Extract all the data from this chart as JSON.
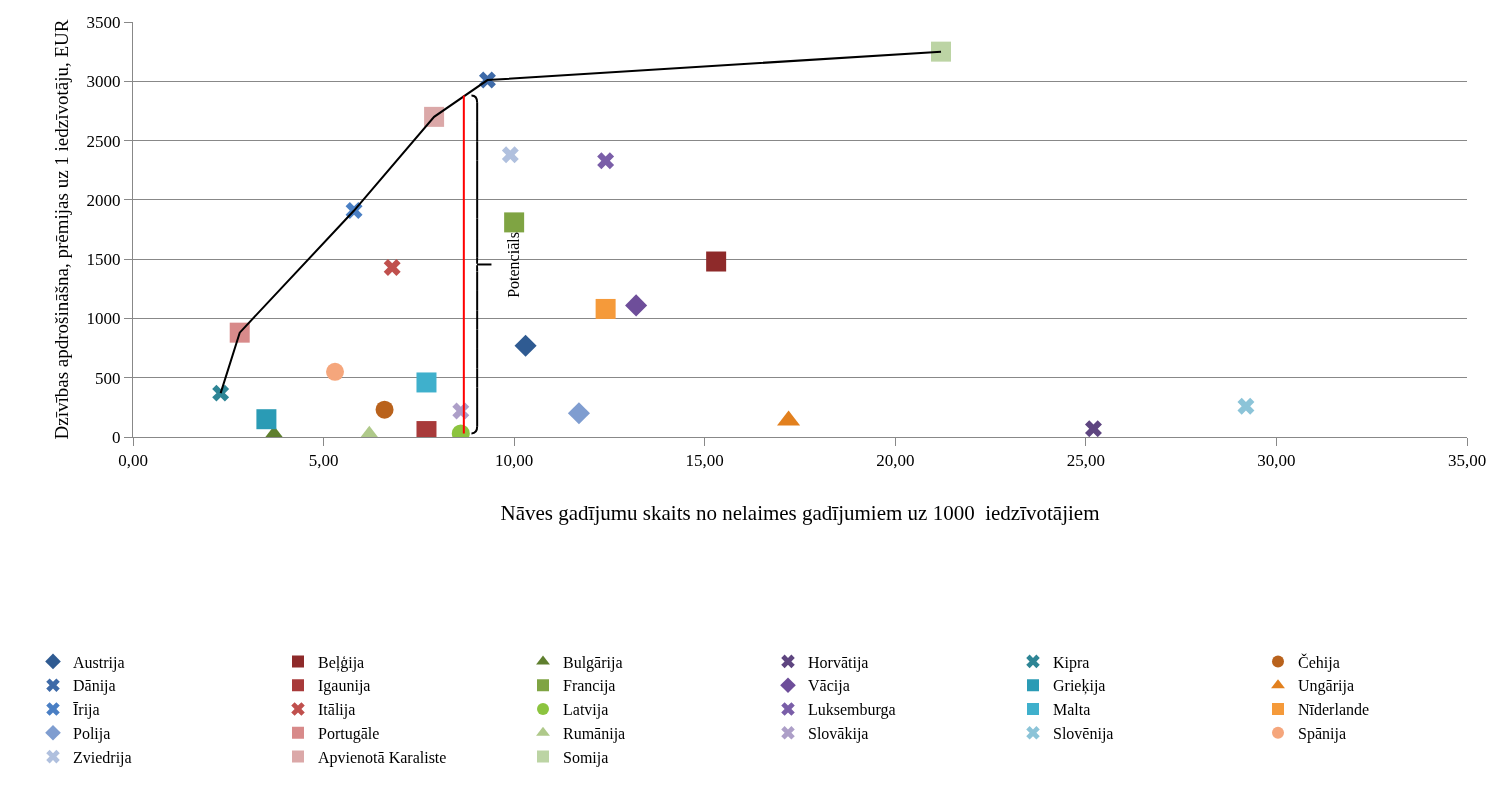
{
  "chart_data": {
    "type": "scatter",
    "xlabel": "Nāves gadījumu skaits no nelaimes gadījumiem uz 1000  iedzīvotājiem",
    "ylabel": "Dzīvības apdrošināšna, prēmijas uz 1 iedzīvotāju, EUR",
    "xlim": [
      0,
      35
    ],
    "ylim": [
      0,
      3500
    ],
    "xticks": [
      {
        "value": 0,
        "label": "0,00"
      },
      {
        "value": 5,
        "label": "5,00"
      },
      {
        "value": 10,
        "label": "10,00"
      },
      {
        "value": 15,
        "label": "15,00"
      },
      {
        "value": 20,
        "label": "20,00"
      },
      {
        "value": 25,
        "label": "25,00"
      },
      {
        "value": 30,
        "label": "30,00"
      },
      {
        "value": 35,
        "label": "35,00"
      }
    ],
    "yticks": [
      0,
      500,
      1000,
      1500,
      2000,
      2500,
      3000,
      3500
    ],
    "grid": "y",
    "legend": "bottom",
    "annotations": [
      "Potenciāls"
    ],
    "series": [
      {
        "name": "Austrija",
        "color": "#2f5b92",
        "marker": "diamond",
        "x": [
          10.3
        ],
        "values": [
          770
        ]
      },
      {
        "name": "Beļģija",
        "color": "#8e2a2a",
        "marker": "square",
        "x": [
          15.3
        ],
        "values": [
          1480
        ]
      },
      {
        "name": "Bulgārija",
        "color": "#5f7f2e",
        "marker": "triangle",
        "x": [
          3.7
        ],
        "values": [
          10
        ]
      },
      {
        "name": "Horvātija",
        "color": "#5e4580",
        "marker": "cross",
        "x": [
          25.2
        ],
        "values": [
          70
        ]
      },
      {
        "name": "Kipra",
        "color": "#2e8595",
        "marker": "cross",
        "x": [
          2.3
        ],
        "values": [
          370
        ]
      },
      {
        "name": "Čehija",
        "color": "#b9621c",
        "marker": "circle",
        "x": [
          6.6
        ],
        "values": [
          230
        ]
      },
      {
        "name": "Dānija",
        "color": "#3e6aa8",
        "marker": "cross",
        "x": [
          9.3
        ],
        "values": [
          3010
        ]
      },
      {
        "name": "Igaunija",
        "color": "#a83a3a",
        "marker": "square",
        "x": [
          7.7
        ],
        "values": [
          50
        ]
      },
      {
        "name": "Francija",
        "color": "#7fa443",
        "marker": "square",
        "x": [
          10.0
        ],
        "values": [
          1810
        ]
      },
      {
        "name": "Vācija",
        "color": "#6e4e9a",
        "marker": "diamond",
        "x": [
          13.2
        ],
        "values": [
          1110
        ]
      },
      {
        "name": "Grieķija",
        "color": "#2a9bb5",
        "marker": "square",
        "x": [
          3.5
        ],
        "values": [
          150
        ]
      },
      {
        "name": "Ungārija",
        "color": "#e2801e",
        "marker": "triangle",
        "x": [
          17.2
        ],
        "values": [
          140
        ]
      },
      {
        "name": "Īrija",
        "color": "#4a7fc4",
        "marker": "cross",
        "x": [
          5.8
        ],
        "values": [
          1910
        ]
      },
      {
        "name": "Itālija",
        "color": "#c0504d",
        "marker": "cross",
        "x": [
          6.8
        ],
        "values": [
          1430
        ]
      },
      {
        "name": "Latvija",
        "color": "#8cc43f",
        "marker": "circle",
        "x": [
          8.6
        ],
        "values": [
          30
        ]
      },
      {
        "name": "Luksemburga",
        "color": "#7a5ea8",
        "marker": "cross",
        "x": [
          12.4
        ],
        "values": [
          2330
        ]
      },
      {
        "name": "Malta",
        "color": "#3fb0cc",
        "marker": "square",
        "x": [
          7.7
        ],
        "values": [
          460
        ]
      },
      {
        "name": "Nīderlande",
        "color": "#f59a3a",
        "marker": "square",
        "x": [
          12.4
        ],
        "values": [
          1080
        ]
      },
      {
        "name": "Polija",
        "color": "#7f9dd0",
        "marker": "diamond",
        "x": [
          11.7
        ],
        "values": [
          200
        ]
      },
      {
        "name": "Portugāle",
        "color": "#d88a8a",
        "marker": "square",
        "x": [
          2.8
        ],
        "values": [
          880
        ]
      },
      {
        "name": "Rumānija",
        "color": "#afc98a",
        "marker": "triangle",
        "x": [
          6.2
        ],
        "values": [
          10
        ]
      },
      {
        "name": "Slovākija",
        "color": "#ad9fc8",
        "marker": "cross",
        "x": [
          8.6
        ],
        "values": [
          220
        ]
      },
      {
        "name": "Slovēnija",
        "color": "#8cc4d8",
        "marker": "cross",
        "x": [
          29.2
        ],
        "values": [
          260
        ]
      },
      {
        "name": "Spānija",
        "color": "#f5a67c",
        "marker": "circle",
        "x": [
          5.3
        ],
        "values": [
          550
        ]
      },
      {
        "name": "Zviedrija",
        "color": "#b0c0de",
        "marker": "cross",
        "x": [
          9.9
        ],
        "values": [
          2380
        ]
      },
      {
        "name": "Apvienotā Karaliste",
        "color": "#dba8a8",
        "marker": "square",
        "x": [
          7.9
        ],
        "values": [
          2700
        ]
      },
      {
        "name": "Somija",
        "color": "#bcd4a4",
        "marker": "square",
        "x": [
          21.2
        ],
        "values": [
          3250
        ]
      },
      {
        "type": "line",
        "color": "#000000",
        "marker": "none",
        "x": [
          2.3,
          2.8,
          5.8,
          7.9,
          9.3,
          21.2
        ],
        "values": [
          370,
          880,
          1910,
          2700,
          3010,
          3250
        ]
      },
      {
        "type": "line",
        "color": "#ff0000",
        "marker": "none",
        "x": [
          8.68,
          8.68
        ],
        "values": [
          30,
          2880
        ]
      }
    ]
  }
}
